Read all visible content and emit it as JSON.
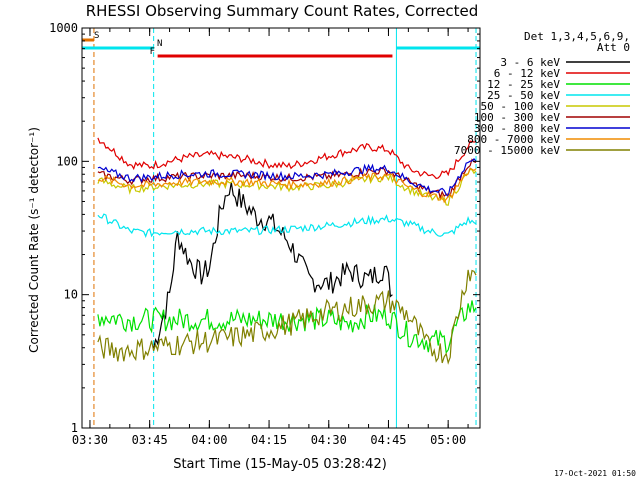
{
  "chart_data": {
    "type": "line",
    "title": "RHESSI Observing Summary Count Rates, Corrected",
    "xlabel": "Start Time (15-May-05 03:28:42)",
    "ylabel": "Corrected Count Rate (s⁻¹ detector⁻¹)",
    "yscale": "log",
    "ylim": [
      1,
      1000
    ],
    "xlim": [
      "03:28",
      "05:08"
    ],
    "x_ticks": [
      "03:30",
      "03:45",
      "04:00",
      "04:15",
      "04:30",
      "04:45",
      "05:00"
    ],
    "y_ticks": [
      "1",
      "10",
      "100",
      "1000"
    ],
    "footer_date": "17-Oct-2021 01:50",
    "legend_header": [
      "Det 1,3,4,5,6,9,",
      "Att 0"
    ],
    "legend_position": "right",
    "flags": [
      {
        "label": "S",
        "color": "#e07000",
        "start": "03:28",
        "end": "03:31"
      },
      {
        "label": "N",
        "color": "#00e5ee",
        "start": "03:28",
        "end": "03:46",
        "start2": "04:47",
        "end2": "05:08"
      },
      {
        "label": "F",
        "color": "#e00000",
        "start": "03:47",
        "end": "04:46"
      }
    ],
    "vlines": [
      {
        "color": "#00e5ee",
        "time": "03:28",
        "style": "solid"
      },
      {
        "color": "#e07000",
        "time": "03:31",
        "style": "dashed"
      },
      {
        "color": "#00e5ee",
        "time": "03:46",
        "style": "dashed"
      },
      {
        "color": "#00e5ee",
        "time": "04:47",
        "style": "solid"
      },
      {
        "color": "#00e5ee",
        "time": "05:07",
        "style": "dashed"
      }
    ],
    "series": [
      {
        "name": "3 - 6 keV",
        "color": "#000000",
        "x": [
          "03:46",
          "03:50",
          "03:52",
          "03:55",
          "03:58",
          "04:00",
          "04:03",
          "04:05",
          "04:08",
          "04:12",
          "04:15",
          "04:20",
          "04:25",
          "04:30",
          "04:35",
          "04:40",
          "04:44",
          "04:46"
        ],
        "y": [
          4,
          10,
          28,
          18,
          14,
          16,
          45,
          65,
          50,
          38,
          36,
          25,
          13,
          12,
          15,
          13,
          16,
          10
        ]
      },
      {
        "name": "6 - 12 keV",
        "color": "#e00000",
        "x": [
          "03:32",
          "03:40",
          "03:45",
          "03:50",
          "03:55",
          "04:00",
          "04:05",
          "04:10",
          "04:15",
          "04:20",
          "04:25",
          "04:30",
          "04:35",
          "04:40",
          "04:45",
          "04:50",
          "04:55",
          "05:00",
          "05:05",
          "05:07"
        ],
        "y": [
          150,
          95,
          92,
          100,
          108,
          112,
          108,
          103,
          95,
          92,
          100,
          110,
          120,
          128,
          122,
          88,
          78,
          80,
          130,
          140
        ]
      },
      {
        "name": "12 - 25 keV",
        "color": "#00e000",
        "x": [
          "03:32",
          "03:40",
          "03:45",
          "03:50",
          "04:00",
          "04:10",
          "04:20",
          "04:30",
          "04:35",
          "04:40",
          "04:45",
          "04:50",
          "04:55",
          "05:00",
          "05:05",
          "05:07"
        ],
        "y": [
          7,
          6.5,
          6.5,
          6.5,
          6.5,
          6.5,
          6.5,
          6.5,
          6,
          7,
          7,
          5,
          4.5,
          4.5,
          8,
          8
        ]
      },
      {
        "name": "25 - 50 keV",
        "color": "#00e5ee",
        "x": [
          "03:32",
          "03:40",
          "03:45",
          "03:50",
          "04:00",
          "04:10",
          "04:20",
          "04:30",
          "04:40",
          "04:45",
          "04:50",
          "04:55",
          "05:00",
          "05:05",
          "05:07"
        ],
        "y": [
          40,
          30,
          29,
          30,
          30,
          30,
          31,
          33,
          36,
          37,
          34,
          30,
          28,
          36,
          34
        ]
      },
      {
        "name": "50 - 100 keV",
        "color": "#c8c800",
        "x": [
          "03:32",
          "03:40",
          "03:45",
          "03:50",
          "04:00",
          "04:10",
          "04:20",
          "04:30",
          "04:40",
          "04:45",
          "04:50",
          "04:55",
          "05:00",
          "05:05",
          "05:07"
        ],
        "y": [
          72,
          62,
          64,
          66,
          68,
          67,
          64,
          66,
          74,
          76,
          62,
          54,
          50,
          82,
          85
        ]
      },
      {
        "name": "100 - 300 keV",
        "color": "#a00000",
        "x": [
          "03:32",
          "03:40",
          "03:45",
          "03:50",
          "04:00",
          "04:10",
          "04:20",
          "04:30",
          "04:40",
          "04:45",
          "04:50",
          "04:55",
          "05:00",
          "05:05",
          "05:07"
        ],
        "y": [
          80,
          72,
          74,
          76,
          78,
          78,
          75,
          77,
          84,
          85,
          70,
          60,
          55,
          95,
          98
        ]
      },
      {
        "name": "300 - 800 keV",
        "color": "#0000d0",
        "x": [
          "03:32",
          "03:40",
          "03:45",
          "03:50",
          "04:00",
          "04:10",
          "04:20",
          "04:30",
          "04:40",
          "04:45",
          "04:50",
          "04:55",
          "05:00",
          "05:05",
          "05:07"
        ],
        "y": [
          88,
          75,
          76,
          79,
          81,
          80,
          77,
          80,
          88,
          88,
          72,
          62,
          57,
          100,
          100
        ]
      },
      {
        "name": "800 - 7000 keV",
        "color": "#f08c00",
        "x": [
          "03:32",
          "03:40",
          "03:45",
          "03:50",
          "04:00",
          "04:10",
          "04:20",
          "04:30",
          "04:40",
          "04:45",
          "04:50",
          "04:55",
          "05:00",
          "05:05",
          "05:07"
        ],
        "y": [
          76,
          66,
          66,
          69,
          71,
          70,
          67,
          69,
          76,
          78,
          64,
          56,
          52,
          85,
          88
        ]
      },
      {
        "name": "7000 - 15000 keV",
        "color": "#808000",
        "x": [
          "03:32",
          "03:38",
          "03:45",
          "03:50",
          "04:00",
          "04:10",
          "04:20",
          "04:30",
          "04:40",
          "04:45",
          "04:50",
          "04:55",
          "05:00",
          "05:05",
          "05:07"
        ],
        "y": [
          4,
          3.8,
          4,
          4.2,
          4.5,
          5,
          6,
          7.5,
          8.5,
          9,
          7,
          4,
          3.6,
          15,
          14
        ]
      }
    ]
  }
}
